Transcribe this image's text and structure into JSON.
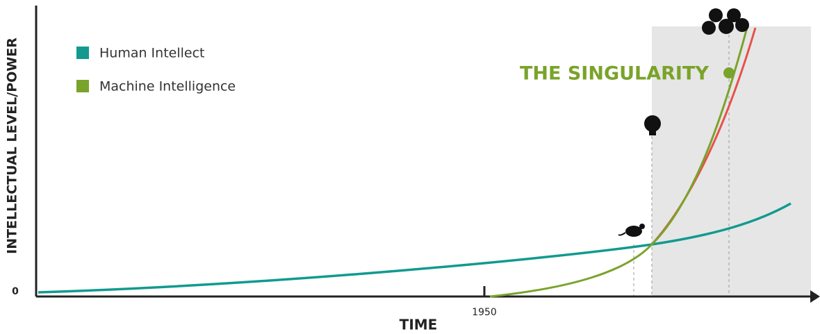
{
  "y_axis_label": "INTELLECTUAL LEVEL/POWER",
  "x_axis_label": "TIME",
  "y_origin_label": "0",
  "x_tick_label": "1950",
  "legend": [
    {
      "name": "Human Intellect",
      "color": "#129a8f"
    },
    {
      "name": "Machine Intelligence",
      "color": "#7aa32a"
    }
  ],
  "annotation": "THE SINGULARITY"
}
